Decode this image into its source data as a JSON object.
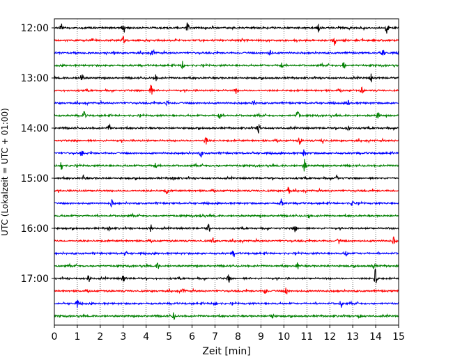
{
  "chart_data": {
    "type": "line",
    "title": "",
    "xlabel": "Zeit  [min]",
    "ylabel": "UTC (Lokalzeit = UTC + 01:00)",
    "xlim": [
      0,
      15
    ],
    "x_ticks": [
      "0",
      "1",
      "2",
      "3",
      "4",
      "5",
      "6",
      "7",
      "8",
      "9",
      "10",
      "11",
      "12",
      "13",
      "14",
      "15"
    ],
    "y_ticks": [
      "12:00",
      "13:00",
      "14:00",
      "15:00",
      "16:00",
      "17:00"
    ],
    "trace_interval_minutes": 15,
    "start_time": "12:00",
    "grid_x": "dotted vertical lines at each minute",
    "series": [
      {
        "time": "12:00",
        "color": "#000000",
        "events": [
          {
            "x": 0.3,
            "a": 0.6
          },
          {
            "x": 3.0,
            "a": 0.7
          },
          {
            "x": 5.8,
            "a": 0.8
          },
          {
            "x": 11.5,
            "a": 0.7
          },
          {
            "x": 14.5,
            "a": 0.9
          }
        ]
      },
      {
        "time": "12:15",
        "color": "#ff0000",
        "events": [
          {
            "x": 3.0,
            "a": 0.6
          },
          {
            "x": 8.2,
            "a": 0.5
          },
          {
            "x": 12.2,
            "a": 0.8
          }
        ]
      },
      {
        "time": "12:30",
        "color": "#0000ff",
        "events": [
          {
            "x": 4.3,
            "a": 0.7
          },
          {
            "x": 9.4,
            "a": 0.5
          },
          {
            "x": 14.3,
            "a": 0.7
          }
        ]
      },
      {
        "time": "12:45",
        "color": "#008000",
        "events": [
          {
            "x": 5.6,
            "a": 0.7
          },
          {
            "x": 9.9,
            "a": 0.6
          },
          {
            "x": 12.6,
            "a": 0.7
          }
        ]
      },
      {
        "time": "13:00",
        "color": "#000000",
        "events": [
          {
            "x": 1.2,
            "a": 0.9
          },
          {
            "x": 4.4,
            "a": 0.5
          },
          {
            "x": 13.8,
            "a": 0.6
          }
        ]
      },
      {
        "time": "13:15",
        "color": "#ff0000",
        "events": [
          {
            "x": 4.2,
            "a": 1.1
          },
          {
            "x": 7.9,
            "a": 0.5
          },
          {
            "x": 13.4,
            "a": 0.5
          }
        ]
      },
      {
        "time": "13:30",
        "color": "#0000ff",
        "events": [
          {
            "x": 4.9,
            "a": 0.6
          },
          {
            "x": 8.7,
            "a": 0.5
          },
          {
            "x": 12.8,
            "a": 0.5
          }
        ]
      },
      {
        "time": "13:45",
        "color": "#008000",
        "events": [
          {
            "x": 1.3,
            "a": 0.6
          },
          {
            "x": 7.2,
            "a": 0.6
          },
          {
            "x": 10.6,
            "a": 0.9
          },
          {
            "x": 14.1,
            "a": 0.5
          }
        ]
      },
      {
        "time": "14:00",
        "color": "#000000",
        "events": [
          {
            "x": 2.4,
            "a": 0.5
          },
          {
            "x": 8.9,
            "a": 0.7
          },
          {
            "x": 12.8,
            "a": 0.6
          }
        ]
      },
      {
        "time": "14:15",
        "color": "#ff0000",
        "events": [
          {
            "x": 6.6,
            "a": 0.6
          },
          {
            "x": 10.7,
            "a": 0.6
          },
          {
            "x": 11.7,
            "a": 0.5
          }
        ]
      },
      {
        "time": "14:30",
        "color": "#0000ff",
        "events": [
          {
            "x": 1.2,
            "a": 0.5
          },
          {
            "x": 6.4,
            "a": 0.6
          },
          {
            "x": 10.9,
            "a": 0.7
          }
        ]
      },
      {
        "time": "14:45",
        "color": "#008000",
        "events": [
          {
            "x": 0.3,
            "a": 0.8
          },
          {
            "x": 4.4,
            "a": 0.6
          },
          {
            "x": 10.9,
            "a": 1.0
          }
        ]
      },
      {
        "time": "15:00",
        "color": "#000000",
        "events": [
          {
            "x": 1.3,
            "a": 0.5
          },
          {
            "x": 5.2,
            "a": 0.5
          },
          {
            "x": 12.3,
            "a": 0.6
          }
        ]
      },
      {
        "time": "15:15",
        "color": "#ff0000",
        "events": [
          {
            "x": 4.9,
            "a": 0.5
          },
          {
            "x": 10.2,
            "a": 0.6
          }
        ]
      },
      {
        "time": "15:30",
        "color": "#0000ff",
        "events": [
          {
            "x": 2.5,
            "a": 0.5
          },
          {
            "x": 9.9,
            "a": 0.7
          },
          {
            "x": 13.0,
            "a": 0.5
          }
        ]
      },
      {
        "time": "15:45",
        "color": "#008000",
        "events": [
          {
            "x": 6.4,
            "a": 0.5
          },
          {
            "x": 11.1,
            "a": 0.5
          }
        ]
      },
      {
        "time": "16:00",
        "color": "#000000",
        "events": [
          {
            "x": 2.4,
            "a": 0.5
          },
          {
            "x": 4.2,
            "a": 0.6
          },
          {
            "x": 6.7,
            "a": 0.6
          },
          {
            "x": 10.5,
            "a": 0.5
          }
        ]
      },
      {
        "time": "16:15",
        "color": "#ff0000",
        "events": [
          {
            "x": 6.9,
            "a": 0.5
          },
          {
            "x": 12.4,
            "a": 0.5
          },
          {
            "x": 14.8,
            "a": 0.6
          }
        ]
      },
      {
        "time": "16:30",
        "color": "#0000ff",
        "events": [
          {
            "x": 3.1,
            "a": 0.4
          },
          {
            "x": 7.8,
            "a": 0.5
          },
          {
            "x": 12.7,
            "a": 0.4
          }
        ]
      },
      {
        "time": "16:45",
        "color": "#008000",
        "events": [
          {
            "x": 4.5,
            "a": 0.5
          },
          {
            "x": 10.6,
            "a": 0.6
          },
          {
            "x": 13.9,
            "a": 0.7
          }
        ]
      },
      {
        "time": "17:00",
        "color": "#000000",
        "events": [
          {
            "x": 1.5,
            "a": 0.6
          },
          {
            "x": 3.0,
            "a": 0.6
          },
          {
            "x": 7.6,
            "a": 0.6
          },
          {
            "x": 14.0,
            "a": 1.6
          }
        ]
      },
      {
        "time": "17:15",
        "color": "#ff0000",
        "events": [
          {
            "x": 5.6,
            "a": 0.5
          },
          {
            "x": 9.2,
            "a": 0.6
          },
          {
            "x": 10.1,
            "a": 0.5
          }
        ]
      },
      {
        "time": "17:30",
        "color": "#0000ff",
        "events": [
          {
            "x": 1.0,
            "a": 0.6
          },
          {
            "x": 7.0,
            "a": 0.6
          },
          {
            "x": 12.5,
            "a": 0.6
          }
        ]
      },
      {
        "time": "17:45",
        "color": "#008000",
        "events": [
          {
            "x": 5.2,
            "a": 0.6
          },
          {
            "x": 9.5,
            "a": 0.5
          },
          {
            "x": 13.3,
            "a": 0.4
          }
        ]
      }
    ]
  }
}
